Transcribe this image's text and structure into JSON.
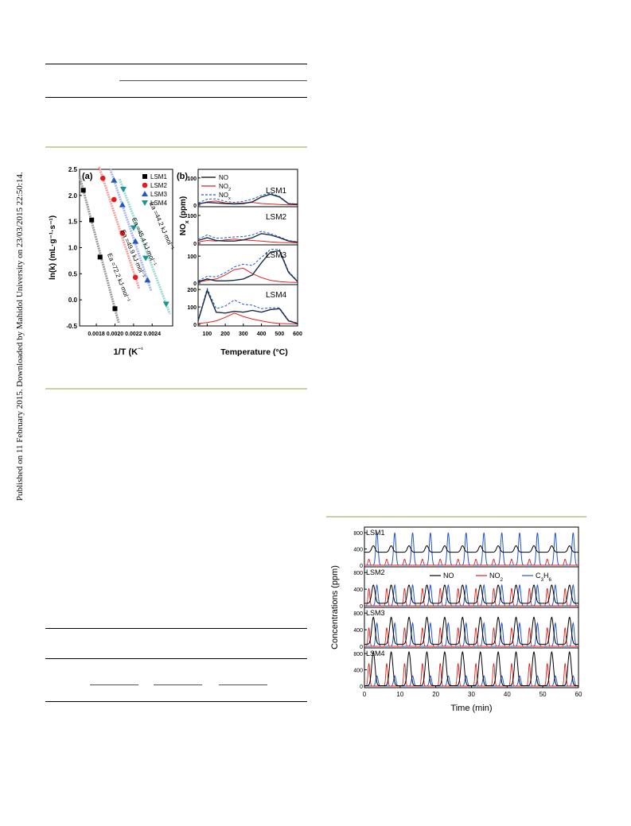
{
  "sidebar": {
    "published_note": "Published on 11 February 2015. Downloaded by Mahidol University on 23/03/2015 22:50:14."
  },
  "colors": {
    "LSM1": "#000000",
    "LSM2": "#e41a1c",
    "LSM3": "#2456c8",
    "LSM4": "#1a9590",
    "NO": "#000000",
    "NO2": "#e02020",
    "NOx": "#2456c8",
    "C3H6": "#2456c8",
    "figure_rule": "#c9cfa7"
  },
  "chart_data": [
    {
      "type": "scatter",
      "panel": "(a)",
      "xlabel": "1/T (K⁻¹)",
      "ylabel": "ln(k) (mL·g⁻¹·s⁻¹)",
      "xlim": [
        0.00162,
        0.00262
      ],
      "ylim": [
        -0.5,
        2.5
      ],
      "xticks": [
        0.0018,
        0.002,
        0.0022,
        0.0024
      ],
      "xtick_labels": [
        "0.0018",
        "0.0020",
        "0.0022",
        "0.0024"
      ],
      "yticks": [
        -0.5,
        0.0,
        0.5,
        1.0,
        1.5,
        2.0,
        2.5
      ],
      "ytick_labels": [
        "-0.5",
        "0.0",
        "0.5",
        "1.0",
        "1.5",
        "2.0",
        "2.5"
      ],
      "legend": [
        "LSM1",
        "LSM2",
        "LSM3",
        "LSM4"
      ],
      "legend_position": "top-right",
      "series": [
        {
          "name": "LSM1",
          "marker": "square",
          "x": [
            0.00166,
            0.00175,
            0.00184,
            0.002
          ],
          "y": [
            2.1,
            1.53,
            0.82,
            -0.17
          ]
        },
        {
          "name": "LSM2",
          "marker": "circle",
          "x": [
            0.00187,
            0.00199,
            0.00208,
            0.00222
          ],
          "y": [
            2.33,
            1.92,
            1.28,
            0.43
          ]
        },
        {
          "name": "LSM3",
          "marker": "triangle-up",
          "x": [
            0.00199,
            0.00208,
            0.00222,
            0.00235
          ],
          "y": [
            2.29,
            1.82,
            1.12,
            0.38
          ]
        },
        {
          "name": "LSM4",
          "marker": "triangle-down",
          "x": [
            0.00209,
            0.0022,
            0.00233,
            0.00255
          ],
          "y": [
            2.12,
            1.38,
            0.8,
            -0.08
          ]
        }
      ],
      "annotations": [
        {
          "series": "LSM1",
          "text": "Ea =72.2 kJ·mol⁻¹"
        },
        {
          "series": "LSM2",
          "text": "Ea =49.9 kJ·mol⁻¹"
        },
        {
          "series": "LSM3",
          "text": "Ea =45.4 kJ·mol⁻¹"
        },
        {
          "series": "LSM4",
          "text": "Ea =44.2 kJ·mol⁻¹"
        }
      ]
    },
    {
      "type": "line",
      "panel": "(b)",
      "xlabel": "Temperature (°C)",
      "ylabel": "NOx (ppm)",
      "xlim": [
        50,
        600
      ],
      "xticks": [
        100,
        200,
        300,
        400,
        500,
        600
      ],
      "legend": [
        "NO",
        "NO2",
        "NOx"
      ],
      "legend_position": "top-left",
      "x": [
        50,
        100,
        150,
        200,
        250,
        300,
        350,
        400,
        450,
        500,
        550,
        600
      ],
      "subplots": [
        {
          "label": "LSM1",
          "ymax": 120,
          "yticks": [
            0,
            100
          ],
          "NO": [
            5,
            10,
            8,
            6,
            4,
            6,
            12,
            30,
            40,
            30,
            5,
            3
          ],
          "NO2": [
            3,
            12,
            15,
            8,
            6,
            8,
            10,
            6,
            4,
            2,
            1,
            1
          ],
          "NOx": [
            8,
            22,
            23,
            14,
            10,
            14,
            22,
            36,
            44,
            32,
            6,
            4
          ]
        },
        {
          "label": "LSM2",
          "ymax": 120,
          "yticks": [
            0,
            100
          ],
          "NO": [
            10,
            20,
            10,
            8,
            8,
            12,
            20,
            35,
            30,
            20,
            8,
            4
          ],
          "NO2": [
            5,
            10,
            8,
            12,
            15,
            12,
            10,
            8,
            5,
            3,
            2,
            1
          ],
          "NOx": [
            15,
            30,
            18,
            20,
            23,
            24,
            30,
            43,
            35,
            23,
            10,
            5
          ]
        },
        {
          "label": "LSM3",
          "ymax": 130,
          "yticks": [
            0,
            100
          ],
          "NO": [
            5,
            15,
            8,
            8,
            10,
            15,
            30,
            75,
            115,
            120,
            40,
            5
          ],
          "NO2": [
            3,
            10,
            15,
            30,
            50,
            55,
            35,
            20,
            10,
            5,
            3,
            2
          ],
          "NOx": [
            8,
            25,
            23,
            38,
            60,
            70,
            65,
            95,
            125,
            125,
            43,
            7
          ]
        },
        {
          "label": "LSM4",
          "ymax": 210,
          "yticks": [
            0,
            100,
            200
          ],
          "NO": [
            20,
            195,
            70,
            65,
            75,
            70,
            80,
            70,
            85,
            90,
            20,
            5
          ],
          "NO2": [
            5,
            10,
            20,
            40,
            65,
            45,
            30,
            20,
            10,
            5,
            3,
            2
          ],
          "NOx": [
            25,
            205,
            90,
            105,
            140,
            115,
            110,
            90,
            95,
            95,
            23,
            7
          ]
        }
      ]
    },
    {
      "type": "line",
      "xlabel": "Time (min)",
      "ylabel": "Concentrations (ppm)",
      "xlim": [
        0,
        60
      ],
      "xticks": [
        0,
        10,
        20,
        30,
        40,
        50,
        60
      ],
      "yticks": [
        0,
        400,
        800
      ],
      "legend": [
        "NO",
        "NO2",
        "C3H6"
      ],
      "legend_position": "top-right",
      "period_min": 5,
      "cycles": 12,
      "subplots": [
        {
          "label": "LSM1",
          "NO_high": 480,
          "NO_low": 320,
          "NO2_peak": 150,
          "C3H6_peak": 800
        },
        {
          "label": "LSM2",
          "NO_high": 500,
          "NO_low": 60,
          "NO2_peak": 420,
          "C3H6_peak": 500
        },
        {
          "label": "LSM3",
          "NO_high": 700,
          "NO_low": 50,
          "NO2_peak": 450,
          "C3H6_peak": 560
        },
        {
          "label": "LSM4",
          "NO_high": 840,
          "NO_low": 10,
          "NO2_peak": 560,
          "C3H6_peak": 250
        }
      ]
    }
  ]
}
